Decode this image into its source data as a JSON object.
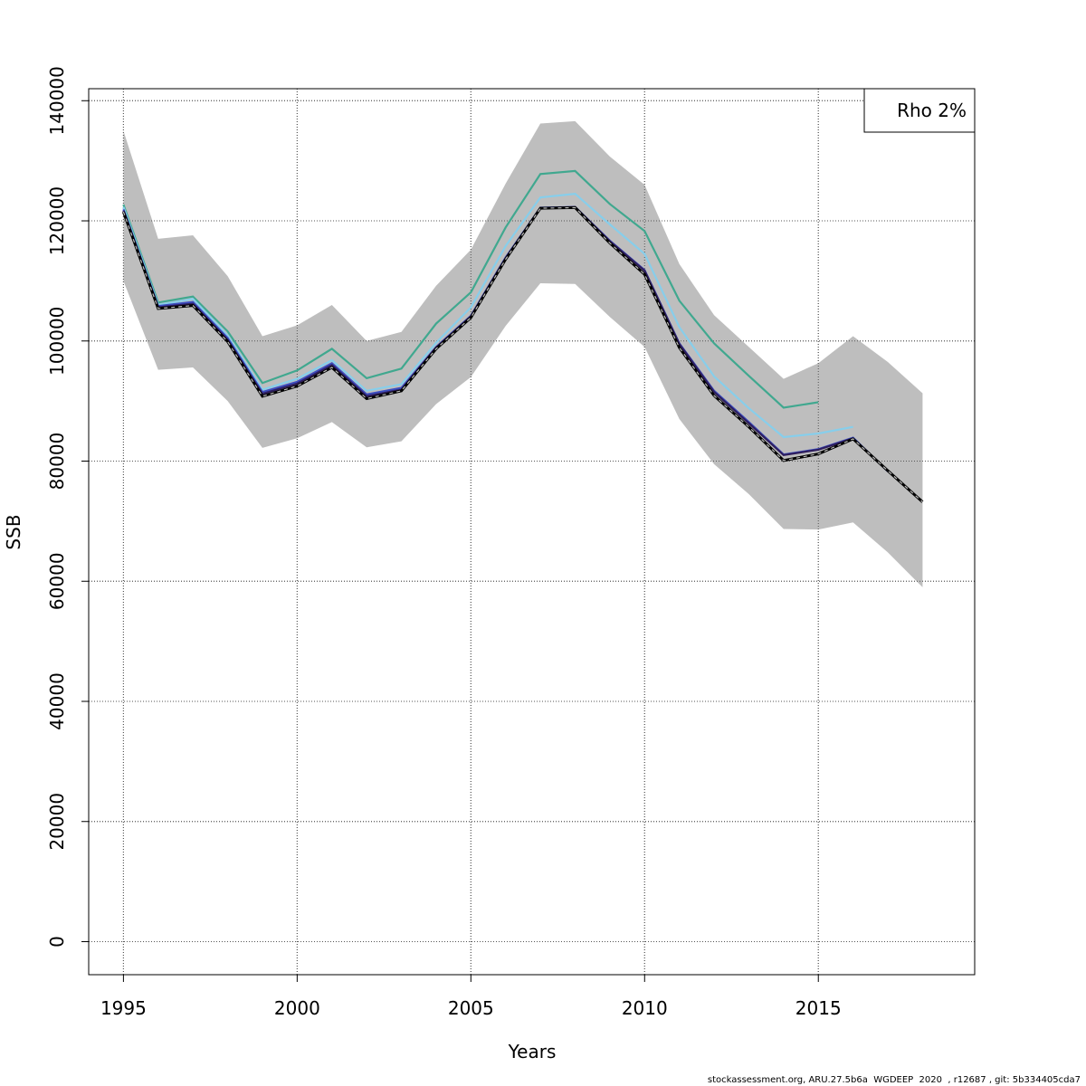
{
  "chart_data": {
    "type": "line",
    "title": "",
    "xlabel": "Years",
    "ylabel": "SSB",
    "xlim": [
      1994,
      2019.5
    ],
    "ylim": [
      -5500,
      142000
    ],
    "x_ticks": [
      1995,
      2000,
      2005,
      2010,
      2015
    ],
    "y_ticks": [
      0,
      20000,
      40000,
      60000,
      80000,
      100000,
      120000,
      140000
    ],
    "grid": true,
    "legend": {
      "placement": "top-right",
      "text": "Rho 2%"
    },
    "confidence_band": {
      "color": "#bebebe",
      "x": [
        1995,
        1996,
        1997,
        1998,
        1999,
        2000,
        2001,
        2002,
        2003,
        2004,
        2005,
        2006,
        2007,
        2008,
        2009,
        2010,
        2011,
        2012,
        2013,
        2014,
        2015,
        2016,
        2017,
        2018
      ],
      "lower": [
        110000,
        95200,
        95600,
        90000,
        82200,
        83800,
        86500,
        82300,
        83300,
        89500,
        94000,
        102500,
        109600,
        109500,
        104000,
        99000,
        87000,
        79500,
        74500,
        68700,
        68600,
        69800,
        64800,
        59000
      ],
      "upper": [
        135000,
        117000,
        117600,
        110800,
        100800,
        102600,
        106000,
        100000,
        101500,
        109200,
        115200,
        126200,
        136200,
        136600,
        130700,
        126000,
        112800,
        104300,
        99000,
        93700,
        96300,
        100800,
        96500,
        91300
      ]
    },
    "series": [
      {
        "color": "#000000",
        "dashed": true,
        "x": [
          1995,
          1996,
          1997,
          1998,
          1999,
          2000,
          2001,
          2002,
          2003,
          2004,
          2005,
          2006,
          2007,
          2008,
          2009,
          2010,
          2011,
          2012,
          2013,
          2014,
          2015,
          2016,
          2017,
          2018
        ],
        "values": [
          121500,
          105400,
          105900,
          99900,
          90800,
          92500,
          95600,
          90400,
          91700,
          98700,
          103900,
          113600,
          122100,
          122200,
          116300,
          111100,
          98900,
          90900,
          85700,
          80100,
          81200,
          83700,
          78400,
          73200
        ]
      },
      {
        "color": "#40a88f",
        "dashed": false,
        "x": [
          1995,
          1996,
          1997,
          1998,
          1999,
          2000,
          2001,
          2002,
          2003,
          2004,
          2005,
          2006,
          2007,
          2008,
          2009,
          2010,
          2011,
          2012,
          2013,
          2014,
          2015
        ],
        "values": [
          122700,
          106400,
          107400,
          101600,
          93000,
          95100,
          98700,
          93800,
          95400,
          102900,
          108100,
          118900,
          127800,
          128300,
          122800,
          118300,
          106700,
          99600,
          94200,
          88900,
          89800
        ]
      },
      {
        "color": "#87ceeb",
        "dashed": false,
        "x": [
          1995,
          1996,
          1997,
          1998,
          1999,
          2000,
          2001,
          2002,
          2003,
          2004,
          2005,
          2006,
          2007,
          2008,
          2009,
          2010,
          2011,
          2012,
          2013,
          2014,
          2015,
          2016
        ],
        "values": [
          122300,
          106000,
          107000,
          100900,
          91900,
          93700,
          96800,
          91700,
          92800,
          99700,
          105600,
          115800,
          123900,
          124500,
          119400,
          114500,
          102300,
          94100,
          88800,
          84000,
          84600,
          85700
        ]
      },
      {
        "color": "#3b4cc0",
        "dashed": false,
        "x": [
          1995,
          1996,
          1997,
          1998,
          1999,
          2000,
          2001,
          2002,
          2003,
          2004,
          2005,
          2006,
          2007,
          2008,
          2009,
          2010,
          2011,
          2012,
          2013,
          2014,
          2015,
          2016,
          2017
        ],
        "values": [
          121900,
          105800,
          106500,
          100500,
          91500,
          93200,
          96300,
          91100,
          92200,
          99000,
          104200,
          113900,
          122200,
          122300,
          116700,
          111800,
          99600,
          91700,
          86500,
          81100,
          82000,
          83900,
          78300
        ]
      },
      {
        "color": "#2e1e5e",
        "dashed": false,
        "x": [
          1995,
          1996,
          1997,
          1998,
          1999,
          2000,
          2001,
          2002,
          2003,
          2004,
          2005,
          2006,
          2007,
          2008,
          2009,
          2010,
          2011,
          2012,
          2013,
          2014,
          2015,
          2016
        ],
        "values": [
          121700,
          105600,
          106200,
          100200,
          91200,
          92900,
          96000,
          90800,
          91900,
          98900,
          104100,
          113800,
          122100,
          122300,
          116600,
          111700,
          99500,
          91500,
          86300,
          81000,
          81900,
          83800
        ]
      }
    ]
  },
  "footer": "stockassessment.org, ARU.27.5b6a  WGDEEP  2020  , r12687 , git: 5b334405cda7"
}
